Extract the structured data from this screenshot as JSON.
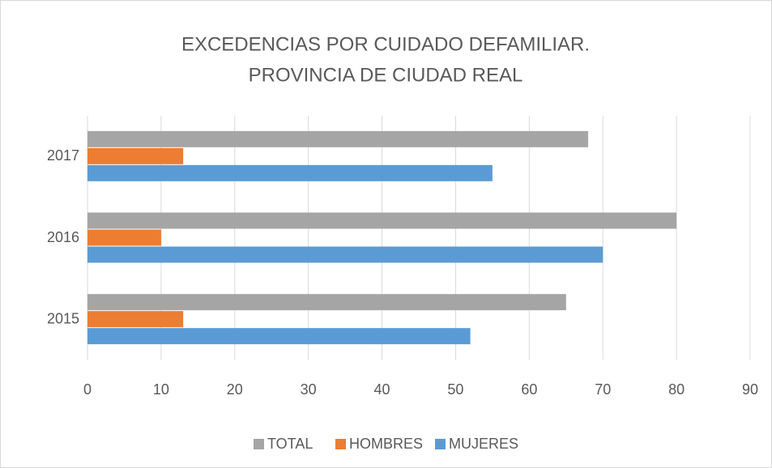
{
  "chart_data": {
    "type": "hbar",
    "title": [
      "EXCEDENCIAS POR CUIDADO DEFAMILIAR.",
      "PROVINCIA DE CIUDAD REAL"
    ],
    "categories": [
      "2015",
      "2016",
      "2017"
    ],
    "series": [
      {
        "name": "TOTAL",
        "color": "#a5a5a5",
        "values": [
          65,
          80,
          68
        ]
      },
      {
        "name": "HOMBRES",
        "color": "#ed7d31",
        "values": [
          13,
          10,
          13
        ]
      },
      {
        "name": "MUJERES",
        "color": "#5b9bd5",
        "values": [
          52,
          70,
          55
        ]
      }
    ],
    "xlim": [
      0,
      90
    ],
    "xticks": [
      0,
      10,
      20,
      30,
      40,
      50,
      60,
      70,
      80,
      90
    ],
    "grid": true,
    "legend": "bottom"
  }
}
